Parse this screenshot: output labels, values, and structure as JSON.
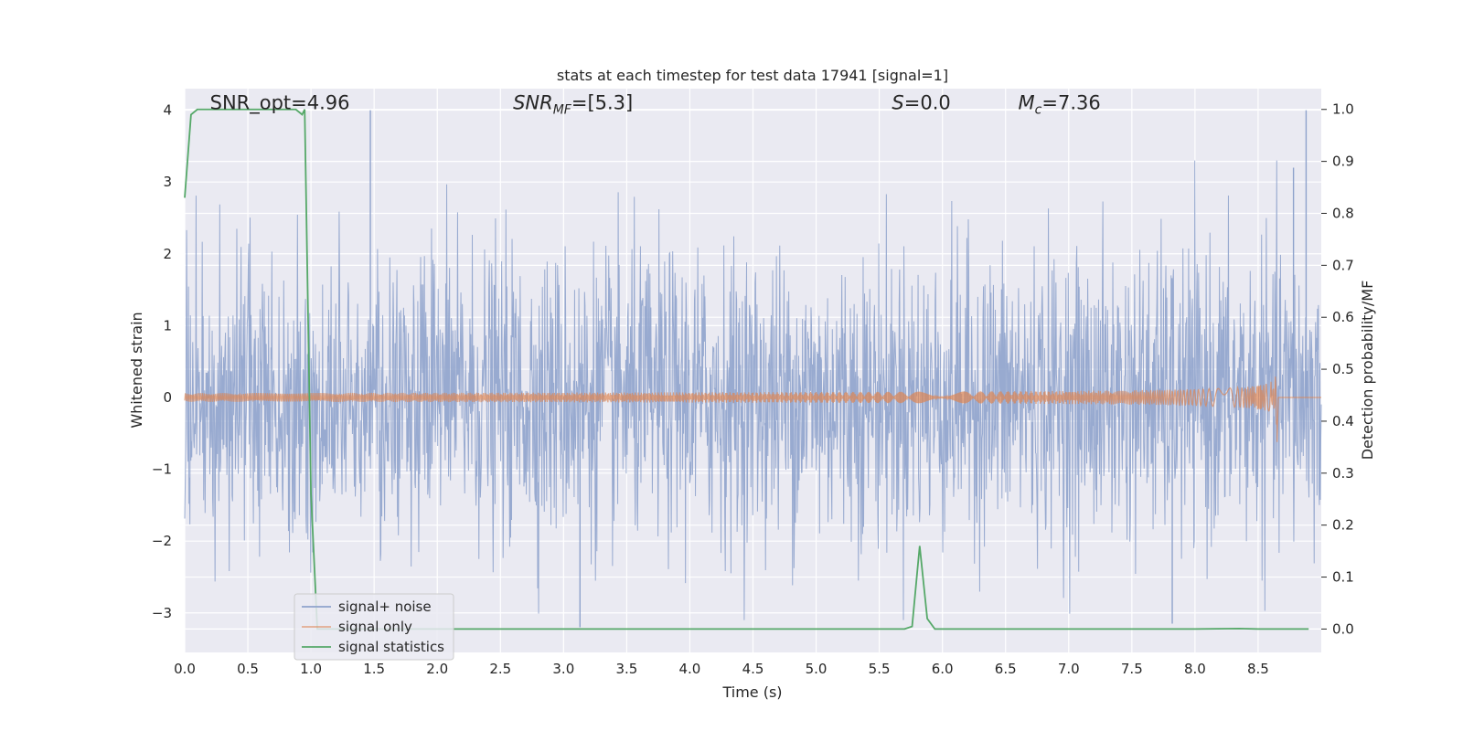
{
  "chart_data": {
    "type": "line",
    "title": "stats at each timestep for test data 17941 [signal=1]",
    "xlabel": "Time (s)",
    "ylabel_left": "Whitened strain",
    "ylabel_right": "Detection probability/MF",
    "xlim": [
      0.0,
      9.0
    ],
    "ylim_left": [
      -3.55,
      4.3
    ],
    "ylim_right": [
      -0.045,
      1.04
    ],
    "xticks": [
      0.0,
      0.5,
      1.0,
      1.5,
      2.0,
      2.5,
      3.0,
      3.5,
      4.0,
      4.5,
      5.0,
      5.5,
      6.0,
      6.5,
      7.0,
      7.5,
      8.0,
      8.5
    ],
    "xtick_labels": [
      "0.0",
      "0.5",
      "1.0",
      "1.5",
      "2.0",
      "2.5",
      "3.0",
      "3.5",
      "4.0",
      "4.5",
      "5.0",
      "5.5",
      "6.0",
      "6.5",
      "7.0",
      "7.5",
      "8.0",
      "8.5"
    ],
    "yticks_left": [
      -3,
      -2,
      -1,
      0,
      1,
      2,
      3,
      4
    ],
    "ytick_labels_left": [
      "−3",
      "−2",
      "−1",
      "0",
      "1",
      "2",
      "3",
      "4"
    ],
    "yticks_right": [
      0.0,
      0.1,
      0.2,
      0.3,
      0.4,
      0.5,
      0.6,
      0.7,
      0.8,
      0.9,
      1.0
    ],
    "ytick_labels_right": [
      "0.0",
      "0.1",
      "0.2",
      "0.3",
      "0.4",
      "0.5",
      "0.6",
      "0.7",
      "0.8",
      "0.9",
      "1.0"
    ],
    "grid": true,
    "legend_position": "lower-left",
    "annotations": [
      {
        "text": "SNR_opt=4.96",
        "x": 0.2,
        "y": 4.05
      },
      {
        "text": "SNR_MF=[5.3]",
        "x": 2.6,
        "y": 4.05
      },
      {
        "text": "S=0.0",
        "x": 5.6,
        "y": 4.05
      },
      {
        "text": "M_c=7.36",
        "x": 6.6,
        "y": 4.05
      }
    ],
    "series": [
      {
        "name": "signal+ noise",
        "axis": "left",
        "color": "#8fa3cc",
        "description": "whitened noisy strain, approx. Gaussian with sigma ~1, spikes up to about 4 and down to about -3.2",
        "t_range": [
          0.0,
          9.0
        ],
        "peaks": [
          {
            "x": 1.47,
            "y": 4.0
          },
          {
            "x": 8.88,
            "y": 4.0
          },
          {
            "x": 8.78,
            "y": 3.2
          },
          {
            "x": 3.13,
            "y": -3.2
          },
          {
            "x": 7.82,
            "y": -3.15
          }
        ]
      },
      {
        "name": "signal only",
        "axis": "left",
        "color": "#dd8452",
        "description": "chirp signal growing in amplitude toward merger near t=8.65 s",
        "merger_time": 8.65,
        "peak_amplitude": 0.45
      },
      {
        "name": "signal statistics",
        "axis": "right",
        "color": "#55a868",
        "x": [
          0.0,
          0.05,
          0.1,
          0.15,
          0.2,
          0.3,
          0.4,
          0.5,
          0.6,
          0.7,
          0.8,
          0.88,
          0.93,
          0.95,
          1.0,
          1.05,
          1.5,
          2.0,
          3.0,
          4.0,
          5.0,
          5.5,
          5.7,
          5.76,
          5.82,
          5.88,
          5.94,
          6.0,
          6.5,
          7.0,
          7.5,
          8.0,
          8.35,
          8.5,
          8.9
        ],
        "y": [
          0.83,
          0.99,
          1.0,
          1.0,
          1.0,
          1.0,
          1.0,
          1.0,
          1.0,
          1.0,
          1.0,
          1.0,
          0.99,
          1.0,
          0.26,
          0.0,
          0.0,
          0.0,
          0.0,
          0.0,
          0.0,
          0.0,
          0.0,
          0.005,
          0.16,
          0.02,
          0.0,
          0.0,
          0.0,
          0.0,
          0.0,
          0.0,
          0.001,
          0.0,
          0.0
        ]
      }
    ]
  }
}
